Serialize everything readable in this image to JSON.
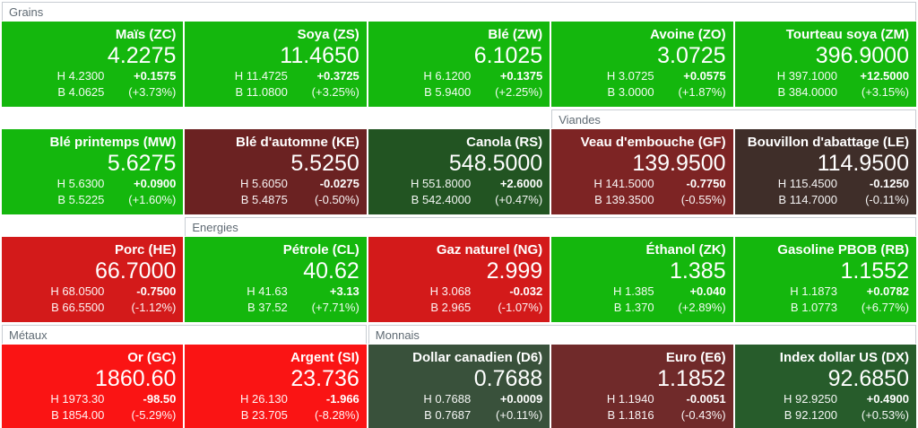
{
  "labels": {
    "high": "H",
    "low": "B"
  },
  "palette": {
    "bright_green": "#14b70d",
    "bright_red": "#fa1414",
    "red": "#d31a1a",
    "dark_maroon": "#6b2222",
    "maroon": "#7d2424",
    "euro_maroon": "#702a2a",
    "dark_brown": "#3f2e29",
    "dark_green": "#225422",
    "dark_green_2": "#275c2b",
    "muted_green": "#39513b",
    "header_text": "#5f6a73",
    "header_border": "#c8cdd2"
  },
  "section_headers": [
    {
      "label": "Grains",
      "row": 0,
      "col_start": 1,
      "col_span": 5
    },
    {
      "label": "Viandes",
      "row": 1,
      "col_start": 4,
      "col_span": 2
    },
    {
      "label": "Energies",
      "row": 2,
      "col_start": 2,
      "col_span": 4
    },
    {
      "label": "Métaux",
      "row": 3,
      "col_start": 1,
      "col_span": 2
    },
    {
      "label": "Monnais",
      "row": 3,
      "col_start": 3,
      "col_span": 3
    }
  ],
  "rows": [
    [
      {
        "title": "Maïs (ZC)",
        "price": "4.2275",
        "high": "4.2300",
        "low": "4.0625",
        "change": "+0.1575",
        "change_pct": "(+3.73%)",
        "bg": "#14b70d"
      },
      {
        "title": "Soya (ZS)",
        "price": "11.4650",
        "high": "11.4725",
        "low": "11.0800",
        "change": "+0.3725",
        "change_pct": "(+3.25%)",
        "bg": "#14b70d"
      },
      {
        "title": "Blé (ZW)",
        "price": "6.1025",
        "high": "6.1200",
        "low": "5.9400",
        "change": "+0.1375",
        "change_pct": "(+2.25%)",
        "bg": "#14b70d"
      },
      {
        "title": "Avoine (ZO)",
        "price": "3.0725",
        "high": "3.0725",
        "low": "3.0000",
        "change": "+0.0575",
        "change_pct": "(+1.87%)",
        "bg": "#14b70d"
      },
      {
        "title": "Tourteau soya (ZM)",
        "price": "396.9000",
        "high": "397.1000",
        "low": "384.0000",
        "change": "+12.5000",
        "change_pct": "(+3.15%)",
        "bg": "#14b70d"
      }
    ],
    [
      {
        "title": "Blé printemps (MW)",
        "price": "5.6275",
        "high": "5.6300",
        "low": "5.5225",
        "change": "+0.0900",
        "change_pct": "(+1.60%)",
        "bg": "#14b70d"
      },
      {
        "title": "Blé d'automne (KE)",
        "price": "5.5250",
        "high": "5.6050",
        "low": "5.4875",
        "change": "-0.0275",
        "change_pct": "(-0.50%)",
        "bg": "#6b2222"
      },
      {
        "title": "Canola (RS)",
        "price": "548.5000",
        "high": "551.8000",
        "low": "542.4000",
        "change": "+2.6000",
        "change_pct": "(+0.47%)",
        "bg": "#225422"
      },
      {
        "title": "Veau d'embouche (GF)",
        "price": "139.9500",
        "high": "141.5000",
        "low": "139.3500",
        "change": "-0.7750",
        "change_pct": "(-0.55%)",
        "bg": "#7d2424"
      },
      {
        "title": "Bouvillon d'abattage (LE)",
        "price": "114.9500",
        "high": "115.4500",
        "low": "114.7000",
        "change": "-0.1250",
        "change_pct": "(-0.11%)",
        "bg": "#3f2e29"
      }
    ],
    [
      {
        "title": "Porc (HE)",
        "price": "66.7000",
        "high": "68.0500",
        "low": "66.5500",
        "change": "-0.7500",
        "change_pct": "(-1.12%)",
        "bg": "#d31a1a"
      },
      {
        "title": "Pétrole (CL)",
        "price": "40.62",
        "high": "41.63",
        "low": "37.52",
        "change": "+3.13",
        "change_pct": "(+7.71%)",
        "bg": "#14b70d"
      },
      {
        "title": "Gaz naturel (NG)",
        "price": "2.999",
        "high": "3.068",
        "low": "2.965",
        "change": "-0.032",
        "change_pct": "(-1.07%)",
        "bg": "#d31a1a"
      },
      {
        "title": "Éthanol (ZK)",
        "price": "1.385",
        "high": "1.385",
        "low": "1.370",
        "change": "+0.040",
        "change_pct": "(+2.89%)",
        "bg": "#14b70d"
      },
      {
        "title": "Gasoline PBOB (RB)",
        "price": "1.1552",
        "high": "1.1873",
        "low": "1.0773",
        "change": "+0.0782",
        "change_pct": "(+6.77%)",
        "bg": "#14b70d"
      }
    ],
    [
      {
        "title": "Or (GC)",
        "price": "1860.60",
        "high": "1973.30",
        "low": "1854.00",
        "change": "-98.50",
        "change_pct": "(-5.29%)",
        "bg": "#fa1414"
      },
      {
        "title": "Argent (SI)",
        "price": "23.736",
        "high": "26.130",
        "low": "23.705",
        "change": "-1.966",
        "change_pct": "(-8.28%)",
        "bg": "#fa1414"
      },
      {
        "title": "Dollar canadien (D6)",
        "price": "0.7688",
        "high": "0.7688",
        "low": "0.7687",
        "change": "+0.0009",
        "change_pct": "(+0.11%)",
        "bg": "#39513b"
      },
      {
        "title": "Euro (E6)",
        "price": "1.1852",
        "high": "1.1940",
        "low": "1.1816",
        "change": "-0.0051",
        "change_pct": "(-0.43%)",
        "bg": "#702a2a"
      },
      {
        "title": "Index dollar US (DX)",
        "price": "92.6850",
        "high": "92.9250",
        "low": "92.1200",
        "change": "+0.4900",
        "change_pct": "(+0.53%)",
        "bg": "#275c2b"
      }
    ]
  ]
}
